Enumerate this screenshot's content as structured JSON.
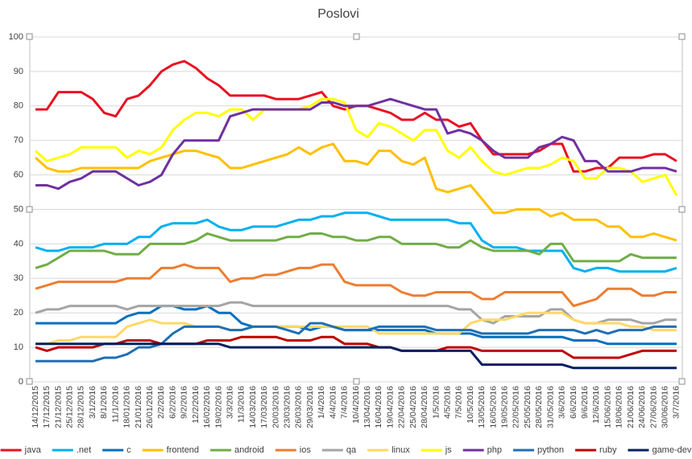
{
  "chart_data": {
    "type": "line",
    "title": "Poslovi",
    "categories": [
      "14/12/2015",
      "17/12/2015",
      "21/12/2015",
      "25/12/2015",
      "28/12/2015",
      "3/1/2016",
      "8/1/2016",
      "11/1/2016",
      "18/01/2016",
      "21/01/2016",
      "26/01/2016",
      "2/2/2016",
      "6/2/2016",
      "9/2/2016",
      "12/2/2016",
      "16/02/2016",
      "19/02/2016",
      "3/3/2016",
      "11/3/2016",
      "14/03/2016",
      "17/03/2016",
      "20/03/2016",
      "23/03/2016",
      "26/03/2016",
      "29/03/2016",
      "1/4/2016",
      "4/4/2016",
      "7/4/2016",
      "10/4/2016",
      "13/04/2016",
      "16/04/2016",
      "19/04/2016",
      "22/04/2016",
      "25/04/2016",
      "28/04/2016",
      "1/5/2016",
      "4/5/2016",
      "7/5/2016",
      "10/5/2016",
      "13/05/2016",
      "16/05/2016",
      "19/05/2016",
      "22/05/2016",
      "25/05/2016",
      "28/05/2016",
      "31/05/2016",
      "3/6/2016",
      "6/6/2016",
      "9/6/2016",
      "12/6/2016",
      "15/06/2016",
      "18/06/2016",
      "21/06/2016",
      "24/06/2016",
      "27/06/2016",
      "30/06/2016",
      "3/7/2016"
    ],
    "ylim": [
      0,
      100
    ],
    "yticks": [
      0,
      10,
      20,
      30,
      40,
      50,
      60,
      70,
      80,
      90,
      100
    ],
    "grid": true,
    "series": [
      {
        "name": "java",
        "color": "#e81123",
        "values": [
          79,
          79,
          84,
          84,
          84,
          82,
          78,
          77,
          82,
          83,
          86,
          90,
          92,
          93,
          91,
          88,
          86,
          83,
          83,
          83,
          83,
          82,
          82,
          82,
          83,
          84,
          80,
          79,
          80,
          80,
          79,
          78,
          76,
          76,
          78,
          76,
          76,
          74,
          75,
          70,
          66,
          66,
          66,
          66,
          67,
          69,
          69,
          61,
          61,
          62,
          62,
          65,
          65,
          65,
          66,
          66,
          64
        ]
      },
      {
        "name": ".net",
        "color": "#00b0f0",
        "values": [
          39,
          38,
          38,
          39,
          39,
          39,
          40,
          40,
          40,
          42,
          42,
          45,
          46,
          46,
          46,
          47,
          45,
          44,
          44,
          45,
          45,
          45,
          46,
          47,
          47,
          48,
          48,
          49,
          49,
          49,
          48,
          47,
          47,
          47,
          47,
          47,
          47,
          46,
          46,
          41,
          39,
          39,
          39,
          38,
          38,
          38,
          38,
          33,
          32,
          33,
          33,
          32,
          32,
          32,
          32,
          32,
          33
        ]
      },
      {
        "name": "c",
        "color": "#0070c0",
        "values": [
          17,
          17,
          17,
          17,
          17,
          17,
          17,
          17,
          19,
          20,
          20,
          22,
          22,
          21,
          21,
          22,
          20,
          20,
          17,
          16,
          16,
          16,
          16,
          16,
          15,
          16,
          16,
          15,
          15,
          15,
          15,
          15,
          15,
          15,
          15,
          14,
          14,
          14,
          14,
          13,
          13,
          13,
          13,
          13,
          13,
          13,
          13,
          12,
          12,
          12,
          11,
          11,
          11,
          11,
          11,
          11,
          11
        ]
      },
      {
        "name": "frontend",
        "color": "#ffc000",
        "values": [
          65,
          62,
          61,
          61,
          62,
          62,
          62,
          62,
          62,
          62,
          64,
          65,
          66,
          67,
          67,
          66,
          65,
          62,
          62,
          63,
          64,
          65,
          66,
          68,
          66,
          68,
          69,
          64,
          64,
          63,
          67,
          67,
          64,
          63,
          65,
          56,
          55,
          56,
          57,
          53,
          49,
          49,
          50,
          50,
          50,
          48,
          49,
          47,
          47,
          47,
          45,
          45,
          42,
          42,
          43,
          42,
          41
        ]
      },
      {
        "name": "android",
        "color": "#70ad47",
        "values": [
          33,
          34,
          36,
          38,
          38,
          38,
          38,
          37,
          37,
          37,
          40,
          40,
          40,
          40,
          41,
          43,
          42,
          41,
          41,
          41,
          41,
          41,
          42,
          42,
          43,
          43,
          42,
          42,
          41,
          41,
          42,
          42,
          40,
          40,
          40,
          40,
          39,
          39,
          41,
          39,
          38,
          38,
          38,
          38,
          37,
          40,
          40,
          35,
          35,
          35,
          35,
          35,
          37,
          36,
          36,
          36,
          36
        ]
      },
      {
        "name": "ios",
        "color": "#ed7d31",
        "values": [
          27,
          28,
          29,
          29,
          29,
          29,
          29,
          29,
          30,
          30,
          30,
          33,
          33,
          34,
          33,
          33,
          33,
          29,
          30,
          30,
          31,
          31,
          32,
          33,
          33,
          34,
          34,
          29,
          28,
          28,
          28,
          28,
          26,
          25,
          25,
          26,
          26,
          26,
          26,
          24,
          24,
          26,
          26,
          26,
          26,
          26,
          26,
          22,
          23,
          24,
          27,
          27,
          27,
          25,
          25,
          26,
          26
        ]
      },
      {
        "name": "qa",
        "color": "#a5a5a5",
        "values": [
          20,
          21,
          21,
          22,
          22,
          22,
          22,
          22,
          21,
          22,
          22,
          22,
          22,
          22,
          22,
          22,
          22,
          23,
          23,
          22,
          22,
          22,
          22,
          22,
          22,
          22,
          22,
          22,
          22,
          22,
          22,
          22,
          22,
          22,
          22,
          22,
          22,
          21,
          21,
          18,
          17,
          19,
          19,
          19,
          19,
          21,
          21,
          18,
          17,
          17,
          18,
          18,
          18,
          17,
          17,
          18,
          18
        ]
      },
      {
        "name": "linux",
        "color": "#ffd966",
        "values": [
          11,
          11,
          12,
          12,
          13,
          13,
          13,
          13,
          16,
          17,
          18,
          17,
          17,
          17,
          16,
          16,
          16,
          15,
          15,
          16,
          16,
          16,
          16,
          16,
          16,
          16,
          16,
          16,
          16,
          16,
          14,
          14,
          14,
          14,
          14,
          14,
          14,
          14,
          17,
          18,
          18,
          18,
          19,
          20,
          20,
          20,
          20,
          18,
          17,
          17,
          17,
          17,
          16,
          16,
          15,
          15,
          15
        ]
      },
      {
        "name": "js",
        "color": "#ffff00",
        "values": [
          67,
          64,
          65,
          66,
          68,
          68,
          68,
          68,
          65,
          67,
          66,
          68,
          73,
          76,
          78,
          78,
          77,
          79,
          79,
          76,
          79,
          79,
          79,
          79,
          80,
          82,
          82,
          81,
          73,
          71,
          75,
          74,
          72,
          70,
          73,
          73,
          67,
          65,
          68,
          64,
          61,
          60,
          61,
          62,
          62,
          63,
          65,
          64,
          59,
          59,
          62,
          62,
          61,
          58,
          59,
          60,
          54
        ]
      },
      {
        "name": "php",
        "color": "#7030a0",
        "values": [
          57,
          57,
          56,
          58,
          59,
          61,
          61,
          61,
          59,
          57,
          58,
          60,
          66,
          70,
          70,
          70,
          70,
          77,
          78,
          79,
          79,
          79,
          79,
          79,
          79,
          81,
          81,
          80,
          80,
          80,
          81,
          82,
          81,
          80,
          79,
          79,
          72,
          73,
          72,
          70,
          67,
          65,
          65,
          65,
          68,
          69,
          71,
          70,
          64,
          64,
          61,
          61,
          61,
          62,
          62,
          62,
          61
        ]
      },
      {
        "name": "python",
        "color": "#1f6fb4",
        "values": [
          6,
          6,
          6,
          6,
          6,
          6,
          7,
          7,
          8,
          10,
          10,
          11,
          14,
          16,
          16,
          16,
          16,
          15,
          15,
          16,
          16,
          16,
          15,
          14,
          17,
          17,
          16,
          15,
          15,
          15,
          16,
          16,
          16,
          16,
          16,
          15,
          15,
          15,
          15,
          14,
          14,
          14,
          14,
          14,
          15,
          15,
          15,
          15,
          14,
          15,
          14,
          15,
          15,
          15,
          16,
          16,
          16
        ]
      },
      {
        "name": "ruby",
        "color": "#c00000",
        "values": [
          10,
          9,
          10,
          10,
          10,
          10,
          11,
          11,
          12,
          12,
          12,
          11,
          11,
          11,
          11,
          12,
          12,
          12,
          13,
          13,
          13,
          13,
          12,
          12,
          12,
          13,
          13,
          11,
          11,
          11,
          10,
          10,
          9,
          9,
          9,
          9,
          10,
          10,
          10,
          9,
          9,
          9,
          9,
          9,
          9,
          9,
          9,
          7,
          7,
          7,
          7,
          7,
          8,
          9,
          9,
          9,
          9
        ]
      },
      {
        "name": "game-dev",
        "color": "#002060",
        "values": [
          11,
          11,
          11,
          11,
          11,
          11,
          11,
          11,
          11,
          11,
          11,
          11,
          11,
          11,
          11,
          11,
          11,
          10,
          10,
          10,
          10,
          10,
          10,
          10,
          10,
          10,
          10,
          10,
          10,
          10,
          10,
          10,
          9,
          9,
          9,
          9,
          9,
          9,
          9,
          5,
          5,
          5,
          5,
          5,
          5,
          5,
          5,
          4,
          4,
          4,
          4,
          4,
          4,
          4,
          4,
          4,
          4
        ]
      }
    ]
  }
}
